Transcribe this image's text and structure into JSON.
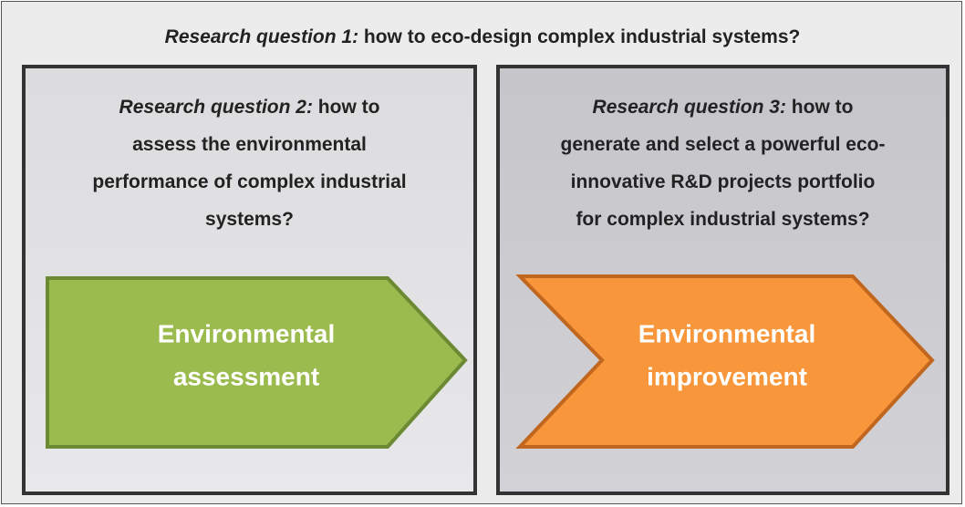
{
  "question_1": {
    "label": "Research question 1:",
    "text": "how to eco-design complex industrial systems?"
  },
  "question_2": {
    "label": "Research question 2:",
    "text_lines": [
      "how to",
      "assess the environmental",
      "performance of complex industrial",
      "systems?"
    ]
  },
  "question_3": {
    "label": "Research question 3:",
    "text_lines": [
      "how to",
      "generate and select a powerful eco-",
      "innovative R&D projects portfolio",
      "for complex industrial systems?"
    ]
  },
  "arrow_left": {
    "lines": [
      "Environmental",
      "assessment"
    ]
  },
  "arrow_right": {
    "lines": [
      "Environmental",
      "improvement"
    ]
  }
}
